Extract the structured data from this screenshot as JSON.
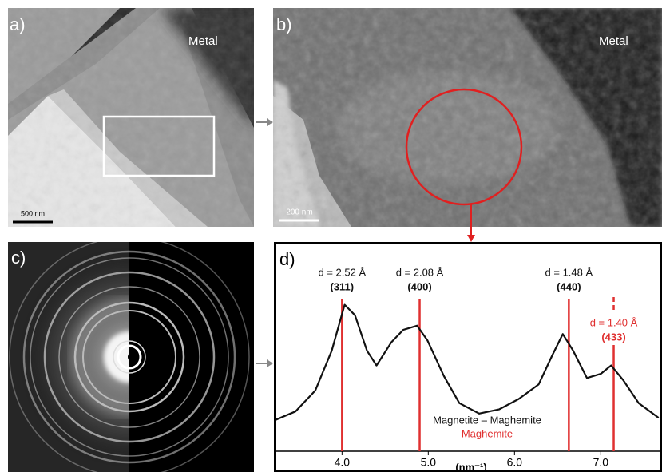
{
  "panels": [
    {
      "label": "a)",
      "annotation": "Metal",
      "scale_bar": "500 nm"
    },
    {
      "label": "b)",
      "annotation": "Metal",
      "scale_bar": "200 nm"
    },
    {
      "label": "c)"
    }
  ],
  "chart_data": {
    "type": "line",
    "panel_label": "d)",
    "x_label": "(nm⁻¹)",
    "x": [
      3.23,
      3.46,
      3.69,
      3.88,
      4.03,
      4.15,
      4.29,
      4.4,
      4.57,
      4.71,
      4.87,
      4.99,
      5.18,
      5.36,
      5.59,
      5.82,
      6.05,
      6.28,
      6.44,
      6.56,
      6.68,
      6.84,
      7.0,
      7.12,
      7.26,
      7.44,
      7.67
    ],
    "values": [
      15,
      19,
      29,
      48,
      70,
      65,
      48,
      41,
      52,
      58,
      60,
      53,
      36,
      23,
      18,
      20,
      25,
      32,
      46,
      56,
      48,
      35,
      37,
      41,
      34,
      23,
      16
    ],
    "color": "#111111",
    "xlim": [
      3.21,
      7.71
    ],
    "ylim": [
      0,
      100
    ],
    "xticks": [
      {
        "value": 4,
        "label": "4.0"
      },
      {
        "value": 5,
        "label": "5.0"
      },
      {
        "value": 6,
        "label": "6.0"
      },
      {
        "value": 7,
        "label": "7.0"
      }
    ],
    "annotations": [
      {
        "x": 4.0,
        "label": "d = 2.52 Å",
        "sublabel": "(311)",
        "color": "#e03030",
        "text_color": "#111111",
        "dashed": false
      },
      {
        "x": 4.9,
        "label": "d = 2.08 Å",
        "sublabel": "(400)",
        "color": "#e03030",
        "text_color": "#111111",
        "dashed": false
      },
      {
        "x": 6.63,
        "label": "d = 1.48 Å",
        "sublabel": "(440)",
        "color": "#e03030",
        "text_color": "#111111",
        "dashed": false
      },
      {
        "x": 7.15,
        "label": "d = 1.40 Å",
        "sublabel": "(433)",
        "color": "#e03030",
        "text_color": "#e03030",
        "dashed": true
      }
    ],
    "legend": [
      {
        "name": "Magnetite – Maghemite",
        "color": "#111111"
      },
      {
        "name": "Maghemite",
        "color": "#e03030"
      }
    ]
  }
}
